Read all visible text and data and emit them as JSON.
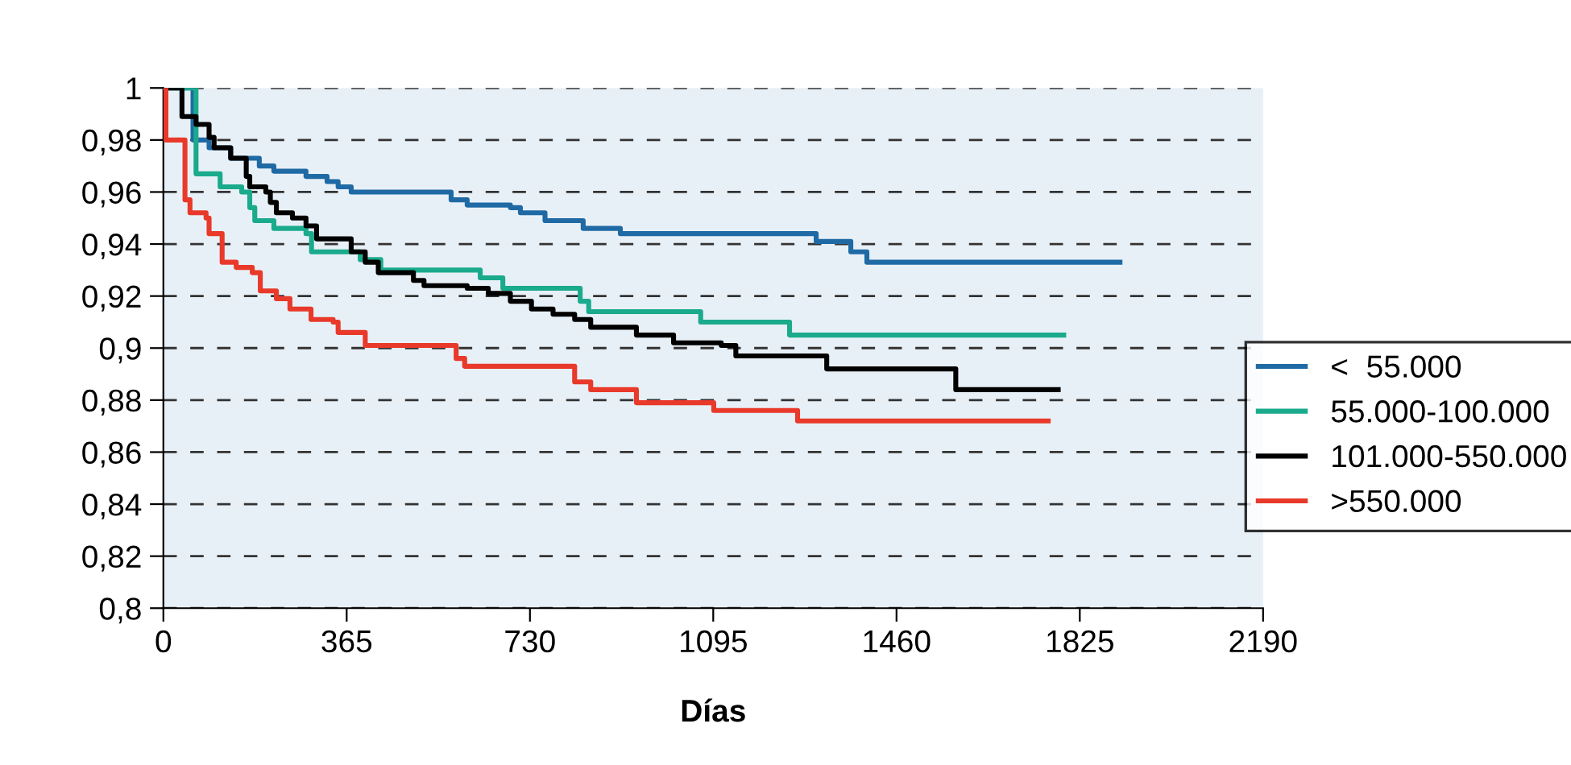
{
  "chart_data": {
    "type": "step",
    "xlabel": "Días",
    "xlim": [
      0,
      2190
    ],
    "xticks": [
      0,
      365,
      730,
      1095,
      1460,
      1825,
      2190
    ],
    "ylim": [
      0.8,
      1
    ],
    "yticks": [
      {
        "value": 0.8,
        "label": "0,8"
      },
      {
        "value": 0.82,
        "label": "0,82"
      },
      {
        "value": 0.84,
        "label": "0,84"
      },
      {
        "value": 0.86,
        "label": "0,86"
      },
      {
        "value": 0.88,
        "label": "0,88"
      },
      {
        "value": 0.9,
        "label": "0,9"
      },
      {
        "value": 0.92,
        "label": "0,92"
      },
      {
        "value": 0.94,
        "label": "0,94"
      },
      {
        "value": 0.96,
        "label": "0,96"
      },
      {
        "value": 0.98,
        "label": "0,98"
      },
      1
    ],
    "grid": "y",
    "legend": "right",
    "line_style": "solid",
    "marker": "none",
    "series": [
      {
        "name": "<  55.000",
        "color": "#1f6aa5",
        "x": [
          0,
          59,
          91,
          134,
          191,
          220,
          284,
          326,
          348,
          374,
          573,
          605,
          691,
          711,
          760,
          836,
          910,
          1300,
          1369,
          1401,
          1905
        ],
        "values": [
          1,
          0.98,
          0.977,
          0.973,
          0.97,
          0.968,
          0.966,
          0.964,
          0.962,
          0.96,
          0.957,
          0.955,
          0.954,
          0.952,
          0.949,
          0.946,
          0.944,
          0.941,
          0.937,
          0.933,
          0.933
        ]
      },
      {
        "name": "55.000-100.000",
        "color": "#1aaa8c",
        "x": [
          0,
          65,
          113,
          156,
          172,
          182,
          220,
          284,
          295,
          392,
          433,
          631,
          676,
          830,
          847,
          1070,
          1247,
          1793
        ],
        "values": [
          1,
          0.967,
          0.962,
          0.96,
          0.954,
          0.949,
          0.946,
          0.944,
          0.937,
          0.934,
          0.93,
          0.927,
          0.923,
          0.918,
          0.914,
          0.91,
          0.905,
          0.905
        ]
      },
      {
        "name": "101.000-550.000",
        "color": "#000000",
        "x": [
          0,
          37,
          65,
          91,
          101,
          134,
          165,
          172,
          204,
          213,
          225,
          257,
          284,
          305,
          374,
          402,
          428,
          498,
          519,
          605,
          647,
          691,
          733,
          776,
          819,
          851,
          942,
          1016,
          1111,
          1140,
          1321,
          1578,
          1782
        ],
        "values": [
          1,
          0.989,
          0.986,
          0.981,
          0.977,
          0.973,
          0.966,
          0.962,
          0.96,
          0.956,
          0.952,
          0.95,
          0.947,
          0.942,
          0.937,
          0.933,
          0.929,
          0.926,
          0.924,
          0.923,
          0.921,
          0.918,
          0.915,
          0.913,
          0.911,
          0.908,
          0.905,
          0.902,
          0.901,
          0.897,
          0.892,
          0.884,
          0.884
        ]
      },
      {
        "name": ">550.000",
        "color": "#e8392a",
        "x": [
          0,
          5,
          43,
          53,
          85,
          91,
          117,
          145,
          177,
          193,
          225,
          252,
          294,
          338,
          348,
          402,
          583,
          600,
          819,
          851,
          942,
          1096,
          1263,
          1762
        ],
        "values": [
          1,
          0.98,
          0.957,
          0.952,
          0.95,
          0.944,
          0.933,
          0.931,
          0.929,
          0.922,
          0.919,
          0.915,
          0.911,
          0.91,
          0.906,
          0.901,
          0.896,
          0.893,
          0.887,
          0.884,
          0.879,
          0.876,
          0.872,
          0.872
        ]
      }
    ]
  }
}
